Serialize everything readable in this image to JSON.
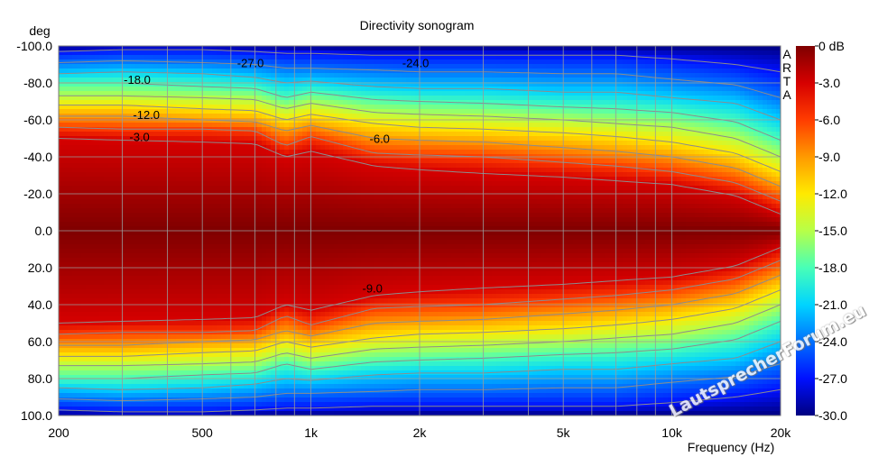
{
  "chart_data": {
    "type": "heatmap",
    "title": "Directivity sonogram",
    "ylabel": "deg",
    "xlabel": "Frequency (Hz)",
    "x_scale": "log",
    "xlim": [
      200,
      20000
    ],
    "ylim": [
      -100,
      100
    ],
    "y_inverted": true,
    "x_ticks": [
      200,
      500,
      1000,
      2000,
      5000,
      10000,
      20000
    ],
    "x_tick_labels": [
      "200",
      "500",
      "1k",
      "2k",
      "5k",
      "10k",
      "20k"
    ],
    "y_ticks": [
      -100,
      -80,
      -60,
      -40,
      -20,
      0,
      20,
      40,
      60,
      80,
      100
    ],
    "y_tick_labels": [
      "-100.0",
      "-80.0",
      "-60.0",
      "-40.0",
      "-20.0",
      "0.0",
      "20.0",
      "40.0",
      "60.0",
      "80.0",
      "100.0"
    ],
    "grid": true,
    "colorbar": {
      "range": [
        -30,
        0
      ],
      "ticks": [
        0,
        -3,
        -6,
        -9,
        -12,
        -15,
        -18,
        -21,
        -24,
        -27,
        -30
      ],
      "tick_labels": [
        "0 dB",
        "-3.0",
        "-6.0",
        "-9.0",
        "-12.0",
        "-15.0",
        "-18.0",
        "-21.0",
        "-24.0",
        "-27.0",
        "-30.0"
      ],
      "colors": [
        "#7f0000",
        "#d60000",
        "#ff3c00",
        "#ff9a00",
        "#ffea00",
        "#b7ff48",
        "#48ffb7",
        "#00d4ff",
        "#0070ff",
        "#0010ff",
        "#000080"
      ]
    },
    "beamwidth_edges": {
      "description": "angle (deg) at which level falls to given dB, per frequency (Hz)",
      "frequencies": [
        200,
        300,
        500,
        700,
        850,
        1000,
        1500,
        2000,
        3000,
        5000,
        7000,
        10000,
        15000,
        20000
      ],
      "contours": [
        {
          "level": -3,
          "angles": [
            50,
            49,
            48,
            47,
            40,
            43,
            35,
            33,
            31,
            29,
            27,
            25,
            19,
            9
          ]
        },
        {
          "level": -6,
          "angles": [
            56,
            55,
            55,
            54,
            46,
            51,
            42,
            41,
            40,
            37,
            35,
            32,
            26,
            16
          ]
        },
        {
          "level": -9,
          "angles": [
            62,
            62,
            60,
            59,
            54,
            57,
            50,
            49,
            48,
            45,
            43,
            40,
            34,
            24
          ]
        },
        {
          "level": -12,
          "angles": [
            68,
            68,
            66,
            65,
            60,
            63,
            58,
            56,
            55,
            53,
            51,
            48,
            42,
            32
          ]
        },
        {
          "level": -15,
          "angles": [
            73,
            73,
            72,
            71,
            66,
            69,
            64,
            63,
            62,
            60,
            58,
            56,
            50,
            40
          ]
        },
        {
          "level": -18,
          "angles": [
            80,
            80,
            78,
            77,
            72,
            75,
            71,
            70,
            69,
            67,
            66,
            64,
            59,
            49
          ]
        },
        {
          "level": -21,
          "angles": [
            85,
            86,
            85,
            83,
            80,
            81,
            78,
            77,
            77,
            75,
            75,
            72,
            69,
            60
          ]
        },
        {
          "level": -24,
          "angles": [
            91,
            92,
            91,
            90,
            88,
            88,
            87,
            86,
            86,
            85,
            85,
            82,
            79,
            72
          ]
        },
        {
          "level": -27,
          "angles": [
            97,
            98,
            98,
            97,
            96,
            96,
            95,
            95,
            95,
            95,
            95,
            93,
            90,
            86
          ]
        }
      ]
    },
    "annotations": [
      {
        "text": "-18.0",
        "x": 330,
        "y": -82
      },
      {
        "text": "-12.0",
        "x": 350,
        "y": -63
      },
      {
        "text": "-3.0",
        "x": 335,
        "y": -51
      },
      {
        "text": "-27.0",
        "x": 680,
        "y": -91
      },
      {
        "text": "-24.0",
        "x": 1950,
        "y": -91
      },
      {
        "text": "-6.0",
        "x": 1550,
        "y": -50
      },
      {
        "text": "-9.0",
        "x": 1480,
        "y": 31
      }
    ],
    "side_label": [
      "A",
      "R",
      "T",
      "A"
    ]
  },
  "watermark": "LautsprecherForum.eu"
}
